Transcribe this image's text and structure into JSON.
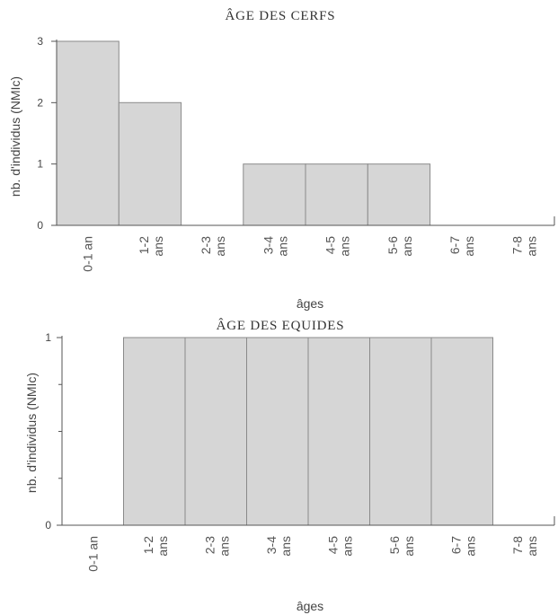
{
  "chart_data": [
    {
      "type": "bar",
      "title": "ÂGE DES CERFS",
      "xlabel": "âges",
      "ylabel": "nb. d'individus (NMIc)",
      "categories": [
        "0-1 an",
        "1-2 ans",
        "2-3 ans",
        "3-4 ans",
        "4-5 ans",
        "5-6 ans",
        "6-7 ans",
        "7-8 ans"
      ],
      "values": [
        3,
        2,
        0,
        1,
        1,
        1,
        0,
        0
      ],
      "ylim": [
        0,
        3
      ],
      "yticks": [
        "0",
        "1",
        "2",
        "3"
      ],
      "grid": false,
      "colors": {
        "bar_fill": "#d6d6d6",
        "bar_edge": "#8a8a8a",
        "axis": "#555555"
      }
    },
    {
      "type": "bar",
      "title": "ÂGE DES EQUIDES",
      "xlabel": "âges",
      "ylabel": "nb. d'individus (NMIc)",
      "categories": [
        "0-1 an",
        "1-2 ans",
        "2-3 ans",
        "3-4 ans",
        "4-5 ans",
        "5-6 ans",
        "6-7 ans",
        "7-8 ans"
      ],
      "values": [
        0,
        1,
        1,
        1,
        1,
        1,
        1,
        0
      ],
      "ylim": [
        0,
        1
      ],
      "yticks": [
        "0",
        "1"
      ],
      "grid": false,
      "colors": {
        "bar_fill": "#d6d6d6",
        "bar_edge": "#8a8a8a",
        "axis": "#555555"
      }
    }
  ]
}
